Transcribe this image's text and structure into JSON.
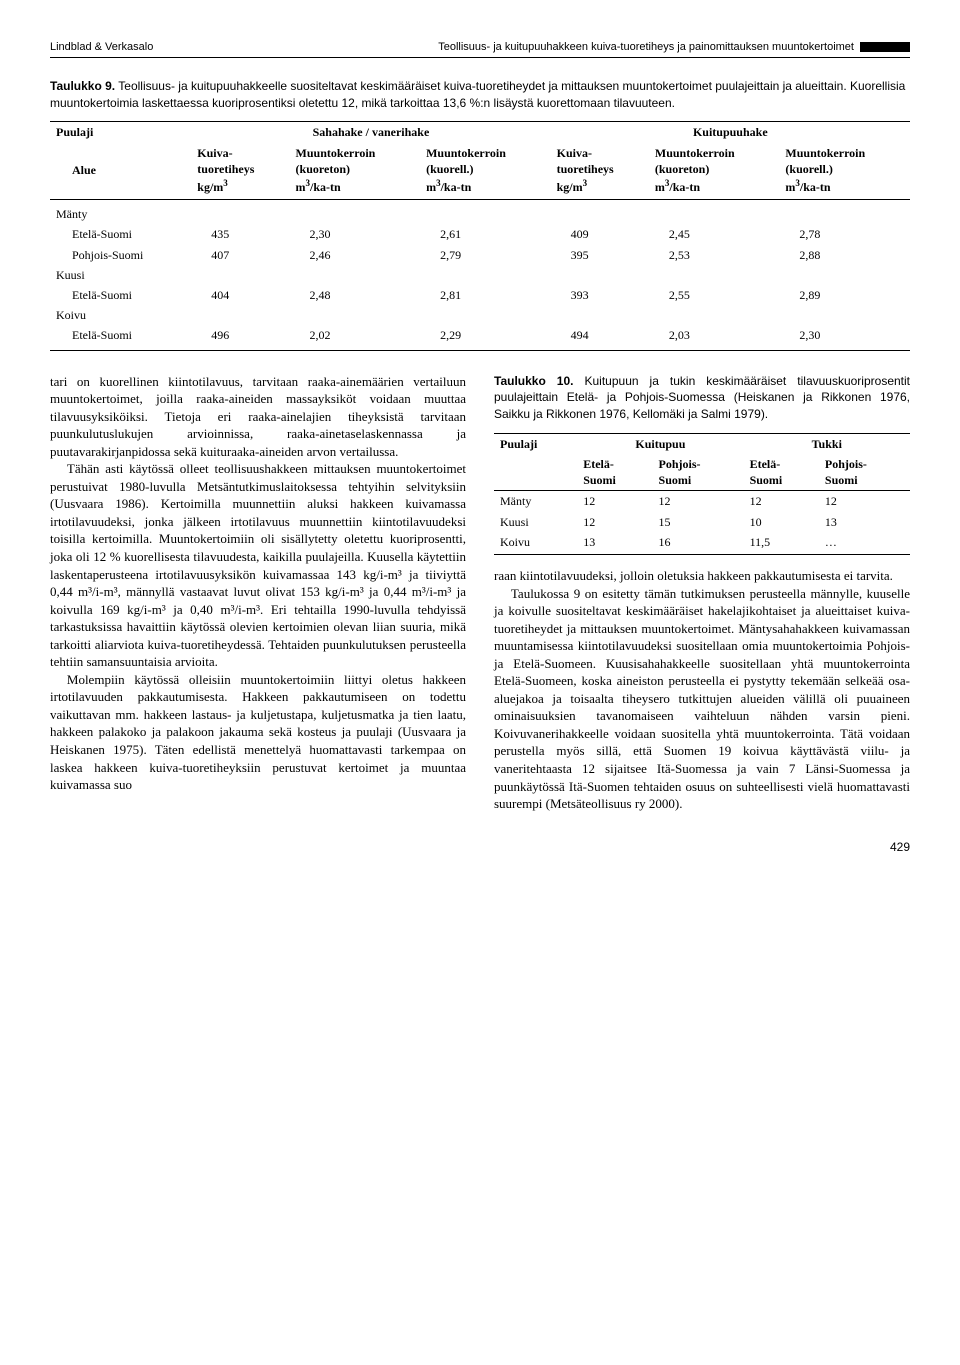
{
  "header": {
    "authors": "Lindblad & Verkasalo",
    "title": "Teollisuus- ja kuitupuuhakkeen kuiva-tuoretiheys ja painomittauksen muuntokertoimet"
  },
  "table9": {
    "caption_label": "Taulukko 9.",
    "caption_text": "Teollisuus- ja kuitupuuhakkeelle suositeltavat keskimääräiset kuiva-tuoretiheydet ja mittauksen muuntokertoimet puulajeittain ja alueittain. Kuorellisia muuntokertoimia laskettaessa kuoriprosentiksi oletettu 12, mikä tarkoittaa 13,6 %:n lisäystä kuorettomaan tilavuuteen.",
    "col_headers": {
      "puulaji": "Puulaji",
      "alue": "Alue",
      "saha": "Sahahake / vanerihake",
      "kuitu": "Kuitupuuhake",
      "kuiva": "Kuiva-\ntuoretiheys\nkg/m³",
      "mk_kuoreton": "Muuntokerroin\n(kuoreton)\nm³/ka-tn",
      "mk_kuorell": "Muuntokerroin\n(kuorell.)\nm³/ka-tn"
    },
    "groups": [
      {
        "name": "Mänty",
        "rows": [
          {
            "alue": "Etelä-Suomi",
            "s_kg": "435",
            "s_mk1": "2,30",
            "s_mk2": "2,61",
            "k_kg": "409",
            "k_mk1": "2,45",
            "k_mk2": "2,78"
          },
          {
            "alue": "Pohjois-Suomi",
            "s_kg": "407",
            "s_mk1": "2,46",
            "s_mk2": "2,79",
            "k_kg": "395",
            "k_mk1": "2,53",
            "k_mk2": "2,88"
          }
        ]
      },
      {
        "name": "Kuusi",
        "rows": [
          {
            "alue": "Etelä-Suomi",
            "s_kg": "404",
            "s_mk1": "2,48",
            "s_mk2": "2,81",
            "k_kg": "393",
            "k_mk1": "2,55",
            "k_mk2": "2,89"
          }
        ]
      },
      {
        "name": "Koivu",
        "rows": [
          {
            "alue": "Etelä-Suomi",
            "s_kg": "496",
            "s_mk1": "2,02",
            "s_mk2": "2,29",
            "k_kg": "494",
            "k_mk1": "2,03",
            "k_mk2": "2,30"
          }
        ]
      }
    ]
  },
  "body": {
    "p1": "tari on kuorellinen kiintotilavuus, tarvitaan raaka-ainemäärien vertailuun muuntokertoimet, joilla raaka-aineiden massayksiköt voidaan muuttaa tilavuusyksiköiksi. Tietoja eri raaka-ainelajien tiheyksistä tarvitaan puunkulutuslukujen arvioinnissa, raaka-ainetaselaskennassa ja puutavarakirjanpidossa sekä kuituraaka-aineiden arvon vertailussa.",
    "p2": "Tähän asti käytössä olleet teollisuushakkeen mittauksen muuntokertoimet perustuivat 1980-luvulla Metsäntutkimuslaitoksessa tehtyihin selvityksiin (Uusvaara 1986). Kertoimilla muunnettiin aluksi hakkeen kuivamassa irtotilavuudeksi, jonka jälkeen irtotilavuus muunnettiin kiintotilavuudeksi toisilla kertoimilla. Muuntokertoimiin oli sisällytetty oletettu kuoriprosentti, joka oli 12 % kuorellisesta tilavuudesta, kaikilla puulajeilla. Kuusella käytettiin laskentaperusteena irtotilavuusyksikön kuivamassaa 143 kg/i-m³ ja tiiviyttä 0,44 m³/i-m³, männyllä vastaavat luvut olivat 153 kg/i-m³ ja 0,44 m³/i-m³ ja koivulla 169 kg/i-m³ ja 0,40 m³/i-m³. Eri tehtailla 1990-luvulla tehdyissä tarkastuksissa havaittiin käytössä olevien kertoimien olevan liian suuria, mikä tarkoitti aliarviota kuiva-tuoretiheydessä. Tehtaiden puunkulutuksen perusteella tehtiin samansuuntaisia arvioita.",
    "p3": "Molempiin käytössä olleisiin muuntokertoimiin liittyi oletus hakkeen irtotilavuuden pakkautumisesta. Hakkeen pakkautumiseen on todettu vaikuttavan mm. hakkeen lastaus- ja kuljetustapa, kuljetusmatka ja tien laatu, hakkeen palakoko ja palakoon jakauma sekä kosteus ja puulaji (Uusvaara ja Heiskanen 1975). Täten edellistä menettelyä huomattavasti tarkempaa on laskea hakkeen kuiva-tuoretiheyksiin perustuvat kertoimet ja muuntaa kuivamassa suo",
    "p4": "raan kiintotilavuudeksi, jolloin oletuksia hakkeen pakkautumisesta ei tarvita.",
    "p5": "Taulukossa 9 on esitetty tämän tutkimuksen perusteella männylle, kuuselle ja koivulle suositeltavat keskimääräiset hakelajikohtaiset ja alueittaiset kuiva-tuoretiheydet ja mittauksen muuntokertoimet. Mäntysahahakkeen kuivamassan muuntamisessa kiintotilavuudeksi suositellaan omia muuntokertoimia Pohjois- ja Etelä-Suomeen. Kuusisahahakkeelle suositellaan yhtä muuntokerrointa Etelä-Suomeen, koska aineiston perusteella ei pystytty tekemään selkeää osa-aluejakoa ja toisaalta tiheysero tutkittujen alueiden välillä oli puuaineen ominaisuuksien tavanomaiseen vaihteluun nähden varsin pieni. Koivuvanerihakkeelle voidaan suositella yhtä muuntokerrointa. Tätä voidaan perustella myös sillä, että Suomen 19 koivua käyttävästä viilu- ja vaneritehtaasta 12 sijaitsee Itä-Suomessa ja vain 7 Länsi-Suomessa ja puunkäytössä Itä-Suomen tehtaiden osuus on suhteellisesti vielä huomattavasti suurempi (Metsäteollisuus ry 2000)."
  },
  "table10": {
    "caption_label": "Taulukko 10.",
    "caption_text": "Kuitupuun ja tukin keskimääräiset tilavuuskuoriprosentit puulajeittain Etelä- ja Pohjois-Suomessa (Heiskanen ja Rikkonen 1976, Saikku ja Rikkonen 1976, Kellomäki ja Salmi 1979).",
    "headers": {
      "puulaji": "Puulaji",
      "kuitupuu": "Kuitupuu",
      "tukki": "Tukki",
      "etela": "Etelä-\nSuomi",
      "pohjois": "Pohjois-\nSuomi"
    },
    "rows": [
      {
        "name": "Mänty",
        "k_e": "12",
        "k_p": "12",
        "t_e": "12",
        "t_p": "12"
      },
      {
        "name": "Kuusi",
        "k_e": "12",
        "k_p": "15",
        "t_e": "10",
        "t_p": "13"
      },
      {
        "name": "Koivu",
        "k_e": "13",
        "k_p": "16",
        "t_e": "11,5",
        "t_p": "…"
      }
    ]
  },
  "pagenum": "429"
}
